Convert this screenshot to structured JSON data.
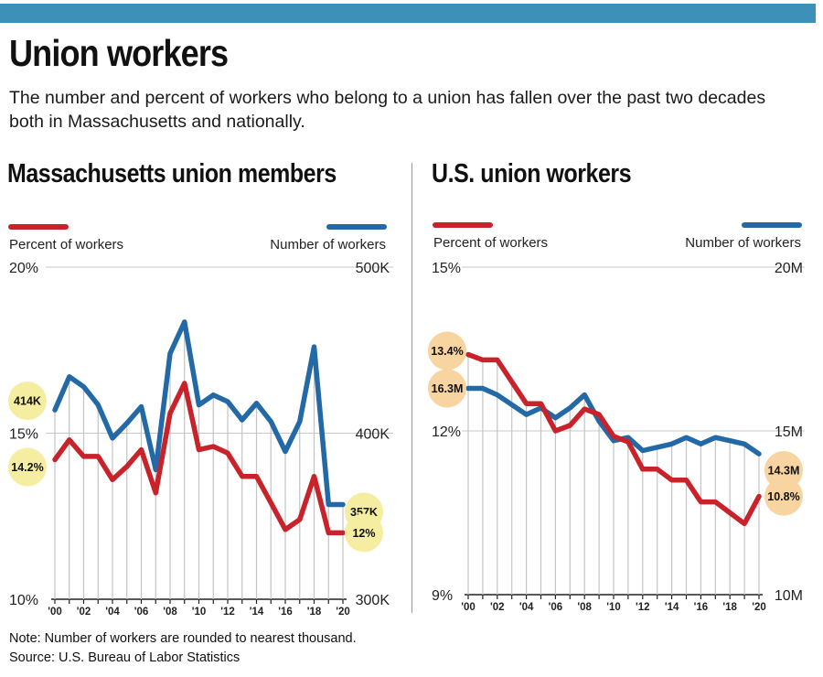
{
  "header": {
    "title": "Union workers",
    "subtitle": "The number and percent of workers who belong to a union has fallen over the past two decades both in Massachusetts and nationally."
  },
  "footer": {
    "note": "Note: Number of workers are rounded to nearest thousand.",
    "source": "Source: U.S. Bureau of Labor Statistics"
  },
  "colors": {
    "percent": "#c8222a",
    "number": "#2369a6",
    "bar": "#3d91b8",
    "highlight_yellow": "#f5eda0",
    "highlight_orange": "#f7d4a0"
  },
  "chart_data": [
    {
      "type": "line",
      "title": "Massachusetts union members",
      "x": [
        "'00",
        "'01",
        "'02",
        "'03",
        "'04",
        "'05",
        "'06",
        "'07",
        "'08",
        "'09",
        "'10",
        "'11",
        "'12",
        "'13",
        "'14",
        "'15",
        "'16",
        "'17",
        "'18",
        "'19",
        "'20"
      ],
      "x_tick_labels": [
        "'00",
        "'02",
        "'04",
        "'06",
        "'08",
        "'10",
        "'12",
        "'14",
        "'16",
        "'18",
        "'20"
      ],
      "left_axis": {
        "label": "Percent of workers",
        "min": 10,
        "max": 20,
        "ticks": [
          "10%",
          "15%",
          "20%"
        ]
      },
      "right_axis": {
        "label": "Number of workers",
        "min": 300,
        "max": 500,
        "ticks": [
          "300K",
          "400K",
          "500K"
        ]
      },
      "series": [
        {
          "name": "Percent of workers",
          "axis": "left",
          "values": [
            14.2,
            14.8,
            14.3,
            14.3,
            13.6,
            14.0,
            14.5,
            13.2,
            15.6,
            16.5,
            14.5,
            14.6,
            14.4,
            13.7,
            13.7,
            12.9,
            12.1,
            12.4,
            13.7,
            12.0,
            12.0
          ]
        },
        {
          "name": "Number of workers",
          "axis": "right",
          "values": [
            414,
            434,
            428,
            417,
            397,
            406,
            416,
            378,
            448,
            467,
            417,
            423,
            419,
            408,
            418,
            407,
            389,
            407,
            452,
            357,
            357
          ]
        }
      ],
      "annotations": {
        "left_start": "14.2%",
        "right_start": "414K",
        "left_end": "12%",
        "right_end": "357K"
      }
    },
    {
      "type": "line",
      "title": "U.S. union workers",
      "x": [
        "'00",
        "'01",
        "'02",
        "'03",
        "'04",
        "'05",
        "'06",
        "'07",
        "'08",
        "'09",
        "'10",
        "'11",
        "'12",
        "'13",
        "'14",
        "'15",
        "'16",
        "'17",
        "'18",
        "'19",
        "'20"
      ],
      "x_tick_labels": [
        "'00",
        "'02",
        "'04",
        "'06",
        "'08",
        "'10",
        "'12",
        "'14",
        "'16",
        "'18",
        "'20"
      ],
      "left_axis": {
        "label": "Percent of workers",
        "min": 9,
        "max": 15,
        "ticks": [
          "9%",
          "12%",
          "15%"
        ]
      },
      "right_axis": {
        "label": "Number of workers",
        "min": 10,
        "max": 20,
        "ticks": [
          "10M",
          "15M",
          "20M"
        ]
      },
      "series": [
        {
          "name": "Percent of workers",
          "axis": "left",
          "values": [
            13.4,
            13.3,
            13.3,
            12.9,
            12.5,
            12.5,
            12.0,
            12.1,
            12.4,
            12.3,
            11.9,
            11.8,
            11.3,
            11.3,
            11.1,
            11.1,
            10.7,
            10.7,
            10.5,
            10.3,
            10.8
          ]
        },
        {
          "name": "Number of workers",
          "axis": "right",
          "values": [
            16.3,
            16.3,
            16.1,
            15.8,
            15.5,
            15.7,
            15.4,
            15.7,
            16.1,
            15.3,
            14.7,
            14.8,
            14.4,
            14.5,
            14.6,
            14.8,
            14.6,
            14.8,
            14.7,
            14.6,
            14.3
          ]
        }
      ],
      "annotations": {
        "left_start": "13.4%",
        "right_start": "16.3M",
        "left_end": "10.8%",
        "right_end": "14.3M"
      }
    }
  ]
}
